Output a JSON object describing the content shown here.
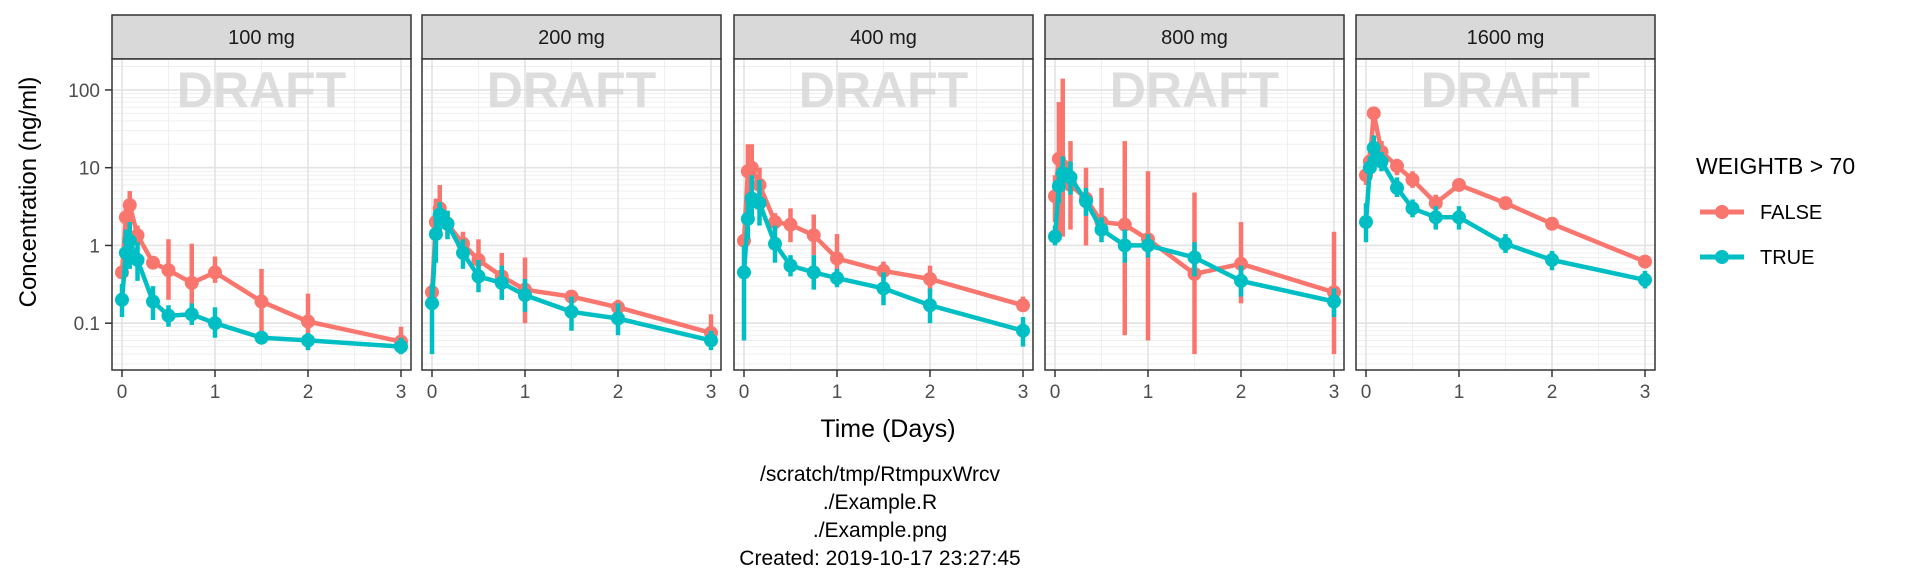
{
  "chart_data": {
    "type": "line",
    "xlabel": "Time (Days)",
    "ylabel": "Concentration (ng/ml)",
    "xlim": [
      0,
      3
    ],
    "ylim": [
      0.025,
      250
    ],
    "yscale": "log",
    "grid": true,
    "x_ticks": [
      0,
      1,
      2,
      3
    ],
    "y_ticks": [
      0.1,
      1,
      10,
      100
    ],
    "y_tick_labels": [
      "0.1",
      "1",
      "10",
      "100"
    ],
    "watermark": "DRAFT",
    "legend": {
      "title": "WEIGHTB > 70",
      "position": "right",
      "entries": [
        "FALSE",
        "TRUE"
      ]
    },
    "colors": {
      "FALSE": "#F8766D",
      "TRUE": "#00BFC4"
    },
    "x": [
      0,
      0.0417,
      0.0833,
      0.1667,
      0.3333,
      0.5,
      0.75,
      1,
      1.5,
      2,
      3
    ],
    "panels": [
      {
        "label": "100 mg",
        "series": [
          {
            "name": "FALSE",
            "y": [
              0.45,
              2.3,
              3.3,
              1.35,
              0.6,
              0.48,
              0.33,
              0.45,
              0.19,
              0.105,
              0.058
            ],
            "lo": [
              0.4,
              1.5,
              2.2,
              1.0,
              0.5,
              0.2,
              0.13,
              0.33,
              0.07,
              0.045,
              0.04
            ],
            "hi": [
              0.5,
              3.5,
              5.0,
              1.8,
              0.72,
              1.2,
              1.05,
              0.72,
              0.5,
              0.24,
              0.09
            ]
          },
          {
            "name": "TRUE",
            "y": [
              0.2,
              0.8,
              1.15,
              0.65,
              0.19,
              0.125,
              0.13,
              0.1,
              0.065,
              0.06,
              0.05
            ],
            "lo": [
              0.12,
              0.4,
              0.5,
              0.35,
              0.11,
              0.09,
              0.095,
              0.065,
              0.06,
              0.045,
              0.04
            ],
            "hi": [
              0.32,
              1.6,
              2.0,
              1.1,
              0.3,
              0.17,
              0.18,
              0.16,
              0.07,
              0.075,
              0.065
            ]
          }
        ]
      },
      {
        "label": "200 mg",
        "series": [
          {
            "name": "FALSE",
            "y": [
              0.25,
              2.0,
              3.0,
              1.9,
              1.05,
              0.65,
              0.4,
              0.27,
              0.22,
              0.16,
              0.075
            ],
            "lo": [
              0.22,
              1.0,
              1.5,
              1.3,
              0.65,
              0.35,
              0.2,
              0.1,
              0.2,
              0.13,
              0.06
            ],
            "hi": [
              0.28,
              4.0,
              6.0,
              2.8,
              1.5,
              1.2,
              0.8,
              0.7,
              0.25,
              0.2,
              0.13
            ]
          },
          {
            "name": "TRUE",
            "y": [
              0.18,
              1.4,
              2.5,
              1.9,
              0.8,
              0.4,
              0.33,
              0.23,
              0.14,
              0.115,
              0.06
            ],
            "lo": [
              0.04,
              0.6,
              1.3,
              1.2,
              0.5,
              0.25,
              0.2,
              0.14,
              0.08,
              0.07,
              0.045
            ],
            "hi": [
              0.32,
              2.4,
              3.6,
              2.8,
              1.2,
              0.65,
              0.55,
              0.37,
              0.22,
              0.18,
              0.08
            ]
          }
        ]
      },
      {
        "label": "400 mg",
        "series": [
          {
            "name": "FALSE",
            "y": [
              1.15,
              9.0,
              10.0,
              6.0,
              2.0,
              1.85,
              1.35,
              0.68,
              0.47,
              0.37,
              0.17
            ],
            "lo": [
              1.0,
              4.0,
              4.0,
              3.5,
              1.5,
              1.1,
              0.75,
              0.45,
              0.35,
              0.24,
              0.14
            ],
            "hi": [
              1.3,
              20.0,
              20.0,
              10.0,
              2.6,
              3.0,
              2.5,
              1.4,
              0.62,
              0.55,
              0.22
            ]
          },
          {
            "name": "TRUE",
            "y": [
              0.45,
              2.2,
              4.0,
              3.5,
              1.05,
              0.55,
              0.45,
              0.38,
              0.28,
              0.17,
              0.08
            ],
            "lo": [
              0.06,
              1.2,
              2.0,
              1.8,
              0.6,
              0.4,
              0.27,
              0.29,
              0.17,
              0.1,
              0.05
            ],
            "hi": [
              1.0,
              4.5,
              8.0,
              7.0,
              1.8,
              0.75,
              0.75,
              0.5,
              0.45,
              0.28,
              0.12
            ]
          }
        ]
      },
      {
        "label": "800 mg",
        "series": [
          {
            "name": "FALSE",
            "y": [
              4.3,
              13.0,
              10.5,
              6.0,
              4.0,
              2.0,
              1.85,
              1.2,
              0.43,
              0.58,
              0.25
            ],
            "lo": [
              2.0,
              1.2,
              1.3,
              1.6,
              1.0,
              1.4,
              0.07,
              0.06,
              0.04,
              0.18,
              0.04
            ],
            "hi": [
              8.0,
              70.0,
              140.0,
              22.0,
              10.0,
              5.5,
              22.0,
              9.0,
              4.8,
              2.0,
              1.5
            ]
          },
          {
            "name": "TRUE",
            "y": [
              1.3,
              5.8,
              8.5,
              7.5,
              3.7,
              1.6,
              1.0,
              1.0,
              0.7,
              0.35,
              0.19
            ],
            "lo": [
              1.0,
              3.5,
              5.0,
              4.5,
              2.4,
              1.1,
              0.6,
              0.7,
              0.4,
              0.22,
              0.12
            ],
            "hi": [
              1.8,
              9.0,
              14.0,
              12.0,
              5.5,
              2.3,
              1.6,
              1.4,
              1.1,
              0.55,
              0.28
            ]
          }
        ]
      },
      {
        "label": "1600 mg",
        "series": [
          {
            "name": "FALSE",
            "y": [
              8.0,
              12.0,
              50.0,
              16.0,
              10.5,
              7.0,
              3.5,
              6.0,
              3.5,
              1.9,
              0.62
            ],
            "lo": [
              6.0,
              9.0,
              35.0,
              12.0,
              8.0,
              5.5,
              2.8,
              5.0,
              2.9,
              1.6,
              0.55
            ],
            "hi": [
              11.0,
              16.0,
              60.0,
              22.0,
              13.0,
              9.0,
              4.5,
              7.2,
              4.2,
              2.3,
              0.72
            ]
          },
          {
            "name": "TRUE",
            "y": [
              2.0,
              10.0,
              18.0,
              12.0,
              5.5,
              3.0,
              2.3,
              2.3,
              1.05,
              0.65,
              0.36
            ],
            "lo": [
              1.1,
              7.0,
              12.0,
              9.0,
              4.2,
              2.3,
              1.6,
              1.6,
              0.8,
              0.48,
              0.28
            ],
            "hi": [
              3.5,
              14.0,
              26.0,
              16.0,
              7.5,
              3.9,
              3.2,
              3.2,
              1.4,
              0.85,
              0.47
            ]
          }
        ]
      }
    ]
  },
  "footer": {
    "lines": [
      "/scratch/tmp/RtmpuxWrcv",
      "./Example.R",
      "./Example.png",
      "Created: 2019-10-17 23:27:45"
    ]
  }
}
